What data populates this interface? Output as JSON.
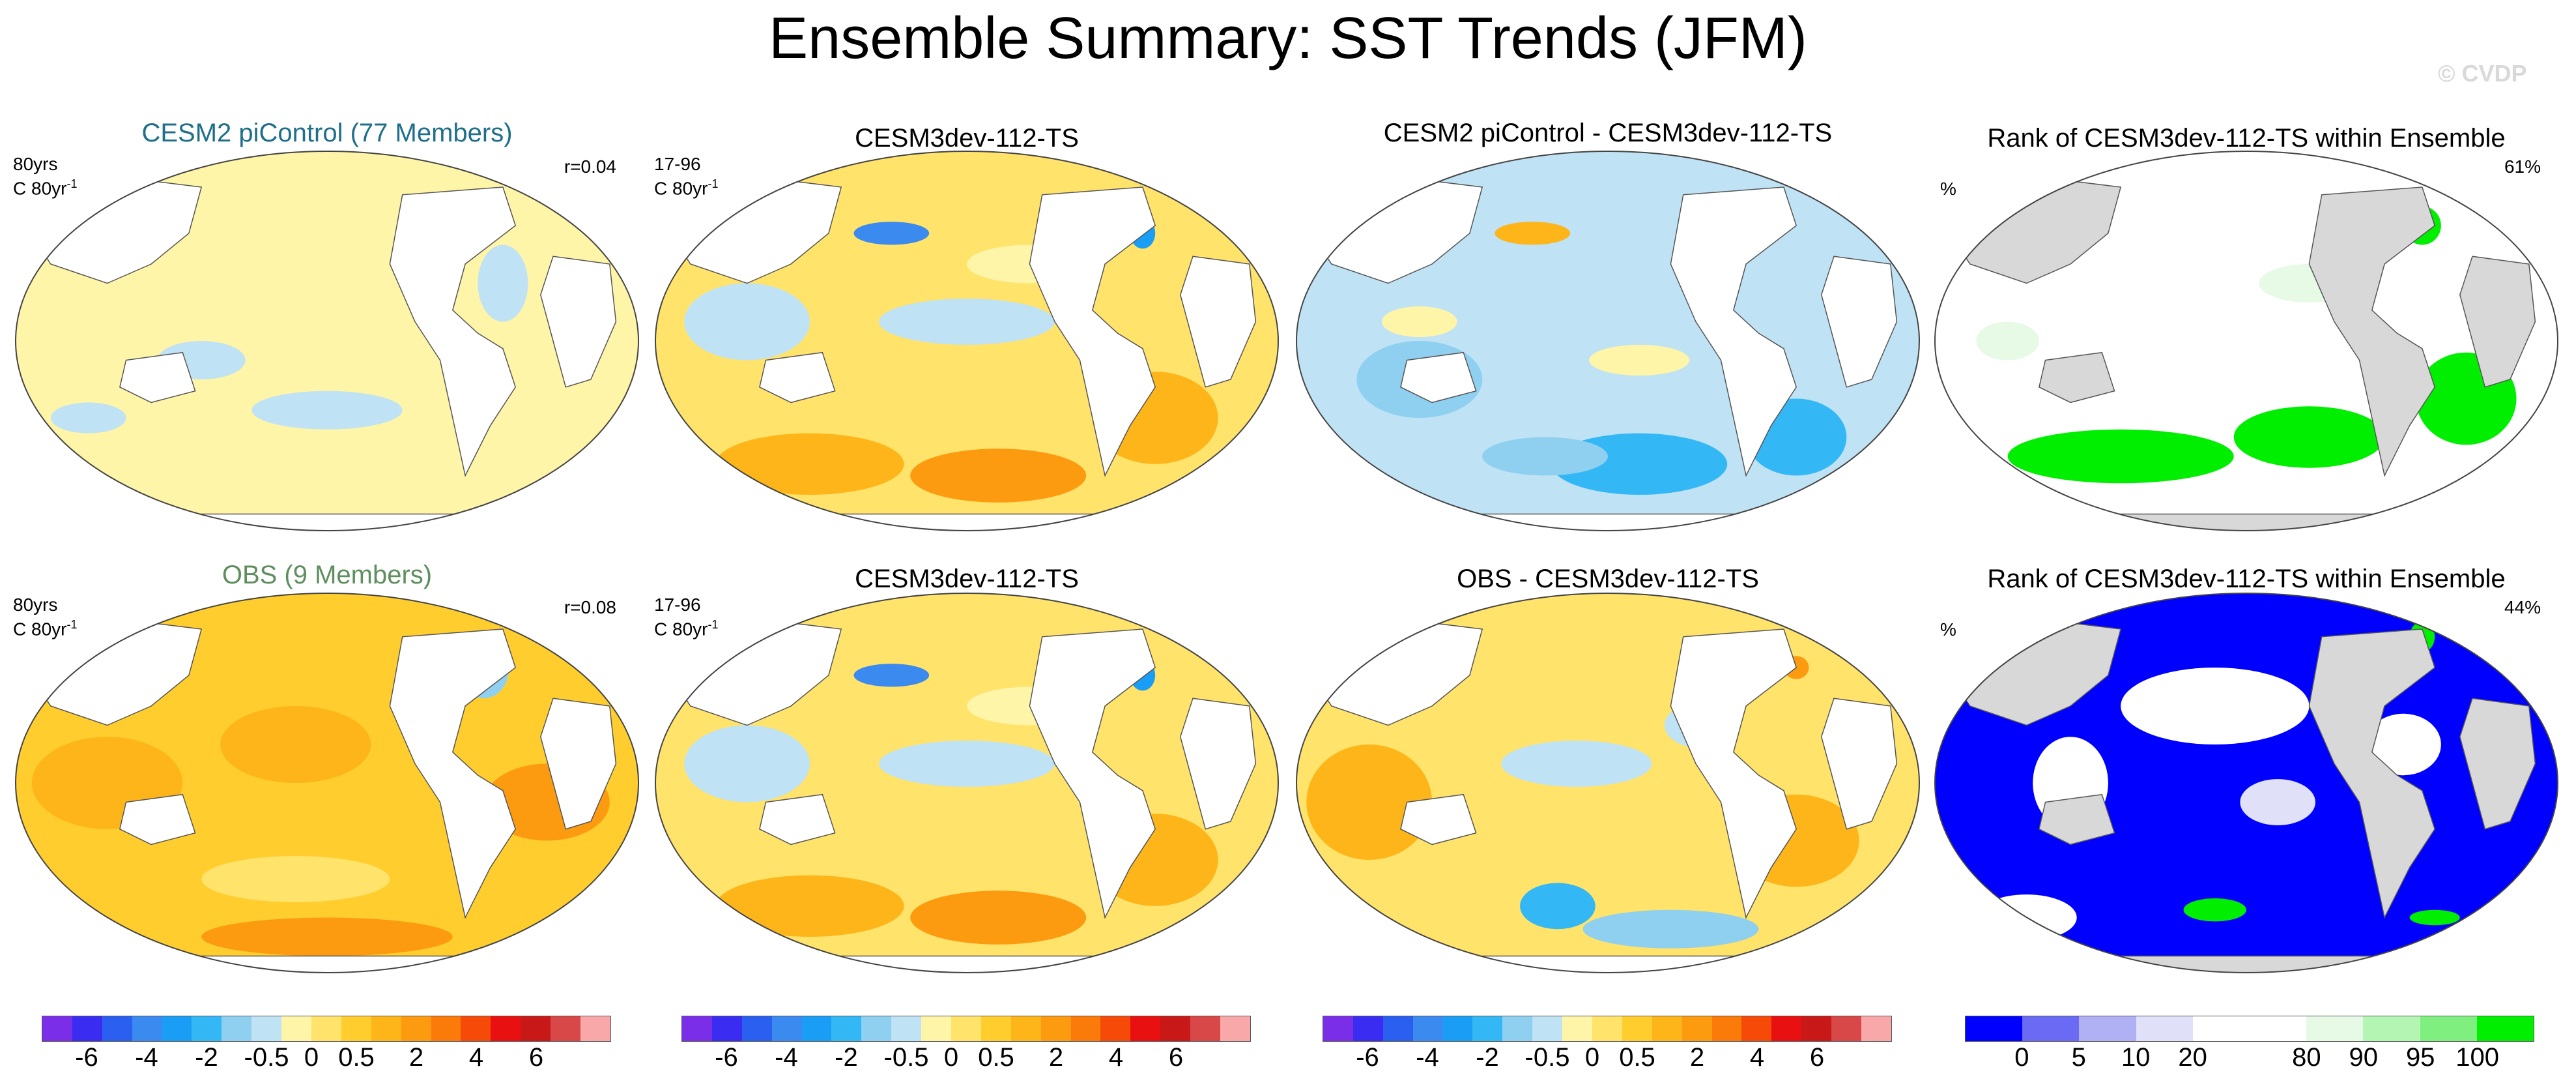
{
  "figure_title": "Ensemble Summary: SST Trends (JFM)",
  "watermark": "© CVDP",
  "colors": {
    "land": "#ffffff",
    "land_rank": "#d8d8d8",
    "title_model": "#1f6f8b",
    "title_obs": "#5f8f5f",
    "ocean_default": "#fff5a8"
  },
  "rows": [
    {
      "panels": [
        {
          "title": "CESM2 piControl (77 Members)",
          "left_label_1": "80yrs",
          "left_label_2": "C 80yr",
          "superscript": "-1",
          "right_label": "r=0.04",
          "scheme": "pale"
        },
        {
          "title": "CESM3dev-112-TS",
          "left_label_1": "17-96",
          "left_label_2": "C 80yr",
          "superscript": "-1",
          "right_label": "",
          "scheme": "warm-mixed"
        },
        {
          "title": "CESM2 piControl - CESM3dev-112-TS",
          "left_label_1": "",
          "left_label_2": "",
          "superscript": "",
          "right_label": "",
          "scheme": "cool"
        },
        {
          "title": "Rank of CESM3dev-112-TS within Ensemble",
          "left_label_1": "%",
          "left_label_2": "",
          "superscript": "",
          "right_label": "61%",
          "scheme": "rank-green"
        }
      ]
    },
    {
      "panels": [
        {
          "title": "OBS (9 Members)",
          "left_label_1": "80yrs",
          "left_label_2": "C 80yr",
          "superscript": "-1",
          "right_label": "r=0.08",
          "scheme": "warm"
        },
        {
          "title": "CESM3dev-112-TS",
          "left_label_1": "17-96",
          "left_label_2": "C 80yr",
          "superscript": "-1",
          "right_label": "",
          "scheme": "warm-mixed"
        },
        {
          "title": "OBS - CESM3dev-112-TS",
          "left_label_1": "",
          "left_label_2": "",
          "superscript": "",
          "right_label": "",
          "scheme": "warm-mixed2"
        },
        {
          "title": "Rank of CESM3dev-112-TS within Ensemble",
          "left_label_1": "%",
          "left_label_2": "",
          "superscript": "",
          "right_label": "44%",
          "scheme": "rank-blue"
        }
      ]
    }
  ],
  "colorbars": {
    "trend": {
      "colors": [
        "#7b2ee8",
        "#3a2cf0",
        "#2b5ff0",
        "#3a8af0",
        "#1a9ef5",
        "#34b8f5",
        "#8fd0f0",
        "#bfe2f5",
        "#fff5a8",
        "#ffe36a",
        "#ffce2e",
        "#fdb51a",
        "#fc9a10",
        "#fa7a0a",
        "#f54a08",
        "#e81010",
        "#c81818",
        "#d84848",
        "#f8a8a8"
      ],
      "tick_labels": [
        "-6",
        "-4",
        "-2",
        "-0.5",
        "0",
        "0.5",
        "2",
        "4",
        "6"
      ],
      "tick_positions": [
        1.5,
        3.5,
        5.5,
        7.5,
        9,
        10.5,
        12.5,
        14.5,
        16.5
      ]
    },
    "rank": {
      "colors": [
        "#0000ff",
        "#6a6af5",
        "#b0b0f5",
        "#e0e0f8",
        "#ffffff",
        "#ffffff",
        "#e6fae6",
        "#b4f5b4",
        "#7ff07f",
        "#00ee00"
      ],
      "tick_labels": [
        "0",
        "5",
        "10",
        "20",
        "80",
        "90",
        "95",
        "100"
      ],
      "tick_positions": [
        1,
        2,
        3,
        4,
        6,
        7,
        8,
        9
      ]
    }
  }
}
